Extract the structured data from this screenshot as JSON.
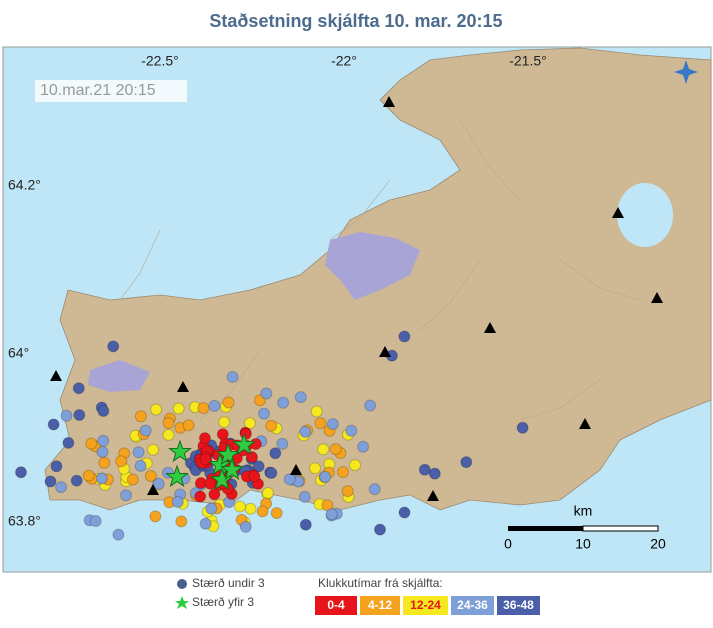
{
  "header": {
    "title": "Staðsetning skjálfta   10. mar. 20:15"
  },
  "map": {
    "timestamp": "10.mar.21  20:15",
    "lon_labels": [
      "-22.5°",
      "-22°",
      "-21.5°"
    ],
    "lat_labels": [
      "64.2°",
      "64°",
      "63.8°"
    ],
    "scale": {
      "unit": "km",
      "ticks": [
        "0",
        "10",
        "20"
      ]
    }
  },
  "legend": {
    "size_labels": [
      "Stærð undir 3",
      "Stærð yfir 3"
    ],
    "time_title": "Klukkutímar frá skjálfta:",
    "time_bins": [
      {
        "label": "0-4",
        "color": "#e8141c",
        "text_color": "#ffffff"
      },
      {
        "label": "4-12",
        "color": "#f5a21e",
        "text_color": "#ffffff"
      },
      {
        "label": "12-24",
        "color": "#f5e81e",
        "text_color": "#e8141c"
      },
      {
        "label": "24-36",
        "color": "#7f9fd8",
        "text_color": "#ffffff"
      },
      {
        "label": "36-48",
        "color": "#4a5fa8",
        "text_color": "#ffffff"
      }
    ]
  }
}
